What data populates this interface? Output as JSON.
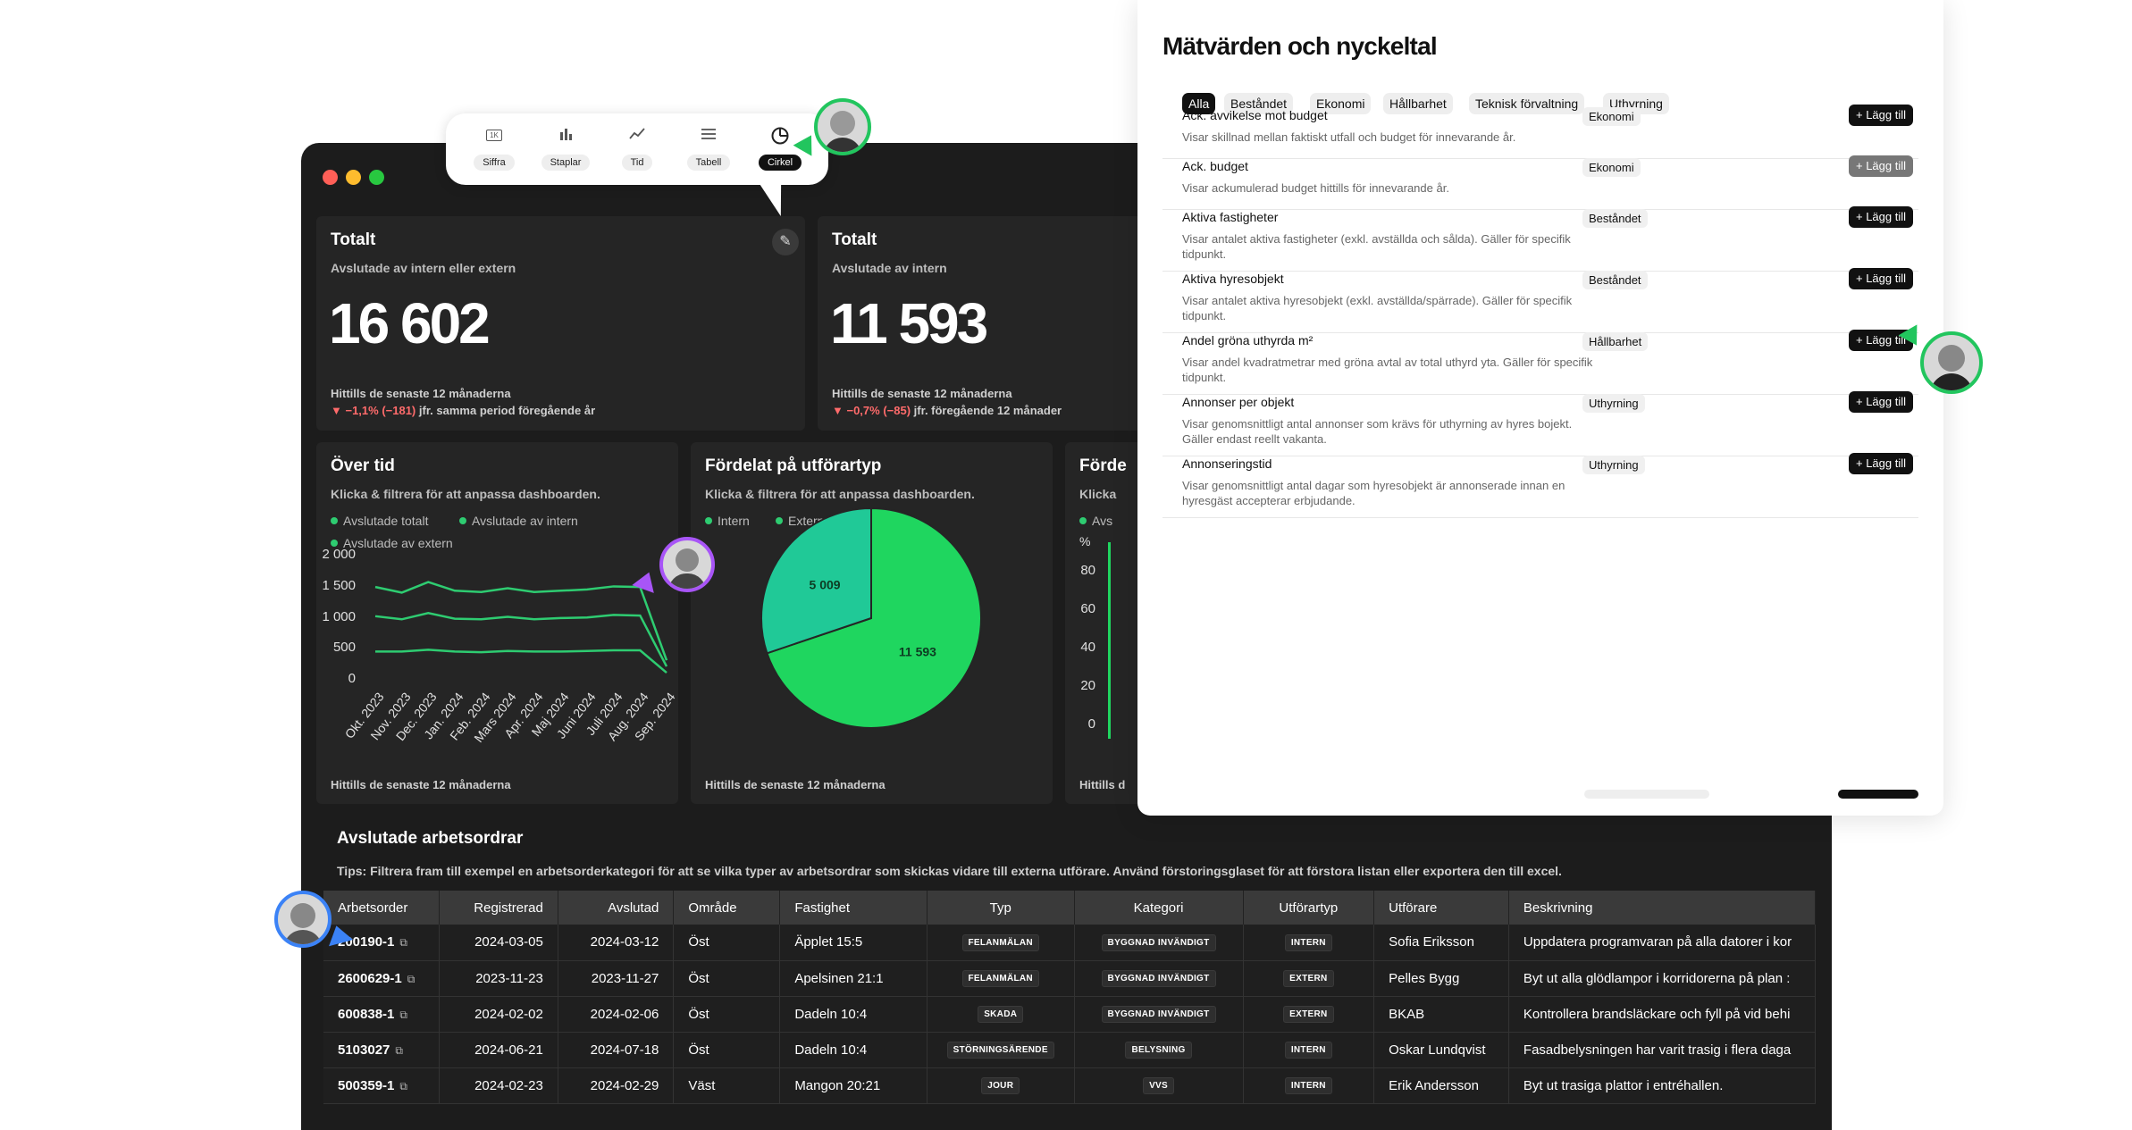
{
  "chart_toolbar": {
    "items": [
      {
        "label": "Siffra",
        "icon": "number-1k-icon"
      },
      {
        "label": "Staplar",
        "icon": "bar-chart-icon"
      },
      {
        "label": "Tid",
        "icon": "line-chart-icon"
      },
      {
        "label": "Tabell",
        "icon": "table-list-icon"
      },
      {
        "label": "Cirkel",
        "icon": "pie-chart-icon"
      }
    ],
    "selected": "Cirkel"
  },
  "kpi_cards": [
    {
      "title": "Totalt",
      "subtitle": "Avslutade av intern eller extern",
      "value": "16 602",
      "period": "Hittills de senaste 12 månaderna",
      "change": "▼ −1,1% (−181)",
      "change_note": "jfr. samma period föregående år"
    },
    {
      "title": "Totalt",
      "subtitle": "Avslutade av intern",
      "value": "11 593",
      "period": "Hittills de senaste 12 månaderna",
      "change": "▼ −0,7% (−85)",
      "change_note": "jfr. föregående 12 månader"
    }
  ],
  "over_time": {
    "title": "Över tid",
    "subtitle": "Klicka & filtrera för att anpassa dashboarden.",
    "legend": [
      "Avslutade totalt",
      "Avslutade av intern",
      "Avslutade av extern"
    ],
    "footer": "Hittills de senaste 12 månaderna"
  },
  "by_type": {
    "title": "Fördelat på utförartyp",
    "subtitle": "Klicka & filtrera för att anpassa dashboarden.",
    "legend": [
      "Intern",
      "Extern"
    ],
    "footer": "Hittills de senaste 12 månaderna"
  },
  "third_card": {
    "title": "Förde",
    "subtitle": "Klicka",
    "legend_partial": "Avs",
    "y_unit": "%",
    "yticks": [
      "80",
      "60",
      "40",
      "20",
      "0"
    ],
    "footer": "Hittills d"
  },
  "chart_data": [
    {
      "type": "line",
      "title": "Över tid",
      "x": [
        "Okt. 2023",
        "Nov. 2023",
        "Dec. 2023",
        "Jan. 2024",
        "Feb. 2024",
        "Mars 2024",
        "Apr. 2024",
        "Maj 2024",
        "Juni 2024",
        "Juli 2024",
        "Aug. 2024",
        "Sep. 2024"
      ],
      "ylim": [
        0,
        2000
      ],
      "yticks": [
        "2 000",
        "1 500",
        "1 000",
        "500",
        "0"
      ],
      "series": [
        {
          "name": "Avslutade totalt",
          "values": [
            1480,
            1390,
            1560,
            1420,
            1400,
            1460,
            1400,
            1420,
            1440,
            1490,
            1480,
            300
          ]
        },
        {
          "name": "Avslutade av intern",
          "values": [
            1010,
            960,
            1060,
            970,
            960,
            1000,
            960,
            980,
            990,
            1030,
            1020,
            200
          ]
        },
        {
          "name": "Avslutade av extern",
          "values": [
            440,
            440,
            470,
            440,
            430,
            450,
            440,
            440,
            450,
            460,
            460,
            100
          ]
        }
      ]
    },
    {
      "type": "pie",
      "title": "Fördelat på utförartyp",
      "categories": [
        "Intern",
        "Extern"
      ],
      "values": [
        11593,
        5009
      ],
      "labels": [
        "11 593",
        "5 009"
      ]
    }
  ],
  "colors": {
    "intern": "#1fd65f",
    "extern": "#20c997",
    "line": "#2ecc71"
  },
  "work_orders": {
    "title": "Avslutade arbetsordrar",
    "tip": "Tips: Filtrera fram till exempel en arbetsorderkategori för att se vilka typer av arbetsordrar som skickas vidare till externa utförare. Använd förstoringsglaset för att förstora listan eller exportera den till excel.",
    "columns": [
      "Arbetsorder",
      "Registrerad",
      "Avslutad",
      "Område",
      "Fastighet",
      "Typ",
      "Kategori",
      "Utförartyp",
      "Utförare",
      "Beskrivning"
    ],
    "rows": [
      [
        "200190-1",
        "2024-03-05",
        "2024-03-12",
        "Öst",
        "Äpplet 15:5",
        "FELANMÄLAN",
        "BYGGNAD INVÄNDIGT",
        "INTERN",
        "Sofia Eriksson",
        "Uppdatera programvaran på alla datorer i kor"
      ],
      [
        "2600629-1",
        "2023-11-23",
        "2023-11-27",
        "Öst",
        "Apelsinen 21:1",
        "FELANMÄLAN",
        "BYGGNAD INVÄNDIGT",
        "EXTERN",
        "Pelles Bygg",
        "Byt ut alla glödlampor i korridorerna på plan :"
      ],
      [
        "600838-1",
        "2024-02-02",
        "2024-02-06",
        "Öst",
        "Dadeln 10:4",
        "SKADA",
        "BYGGNAD INVÄNDIGT",
        "EXTERN",
        "BKAB",
        "Kontrollera brandsläckare och fyll på vid behi"
      ],
      [
        "5103027",
        "2024-06-21",
        "2024-07-18",
        "Öst",
        "Dadeln 10:4",
        "STÖRNINGSÄRENDE",
        "BELYSNING",
        "INTERN",
        "Oskar Lundqvist",
        "Fasadbelysningen har varit trasig i flera daga"
      ],
      [
        "500359-1",
        "2024-02-23",
        "2024-02-29",
        "Väst",
        "Mangon 20:21",
        "JOUR",
        "VVS",
        "INTERN",
        "Erik Andersson",
        "Byt ut trasiga plattor i entréhallen."
      ]
    ]
  },
  "metrics_panel": {
    "title": "Mätvärden och nyckeltal",
    "filters": [
      "Alla",
      "Beståndet",
      "Ekonomi",
      "Hållbarhet",
      "Teknisk förvaltning",
      "Uthyrning"
    ],
    "active_filter": "Alla",
    "add_label": "+ Lägg till",
    "items": [
      {
        "name": "Ack. avvikelse mot budget",
        "desc": "Visar skillnad mellan faktiskt utfall och budget för innevarande år.",
        "category": "Ekonomi",
        "disabled": false
      },
      {
        "name": "Ack. budget",
        "desc": "Visar ackumulerad budget hittills för innevarande år.",
        "category": "Ekonomi",
        "disabled": true
      },
      {
        "name": "Aktiva fastigheter",
        "desc": "Visar antalet aktiva fastigheter (exkl. avställda och sålda). Gäller för specifik tidpunkt.",
        "category": "Beståndet",
        "disabled": false
      },
      {
        "name": "Aktiva hyresobjekt",
        "desc": "Visar antalet aktiva hyresobjekt (exkl. avställda/spärrade). Gäller för specifik tidpunkt.",
        "category": "Beståndet",
        "disabled": false
      },
      {
        "name": "Andel gröna uthyrda m²",
        "desc": "Visar andel kvadratmetrar med gröna avtal av total uthyrd yta. Gäller för specifik tidpunkt.",
        "category": "Hållbarhet",
        "disabled": false
      },
      {
        "name": "Annonser per objekt",
        "desc": "Visar genomsnittligt antal annonser som krävs för uthyrning av hyres bojekt. Gäller endast reellt vakanta.",
        "category": "Uthyrning",
        "disabled": false
      },
      {
        "name": "Annonseringstid",
        "desc": "Visar genomsnittligt antal dagar som hyresobjekt är annonserade innan en hyresgäst accepterar erbjudande.",
        "category": "Uthyrning",
        "disabled": false
      }
    ]
  }
}
